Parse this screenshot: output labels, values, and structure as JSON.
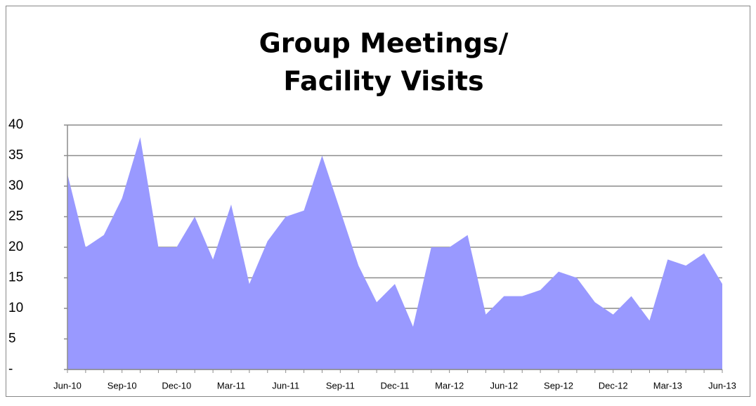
{
  "chart_data": {
    "type": "area",
    "title": [
      "Group Meetings/",
      "Facility Visits"
    ],
    "categories": [
      "Jun-10",
      null,
      null,
      "Sep-10",
      null,
      null,
      "Dec-10",
      null,
      null,
      "Mar-11",
      null,
      null,
      "Jun-11",
      null,
      null,
      "Sep-11",
      null,
      null,
      "Dec-11",
      null,
      null,
      "Mar-12",
      null,
      null,
      "Jun-12",
      null,
      null,
      "Sep-12",
      null,
      null,
      "Dec-12",
      null,
      null,
      "Mar-13",
      null,
      null,
      "Jun-13"
    ],
    "values": [
      32,
      20,
      22,
      28,
      38,
      20,
      20,
      25,
      18,
      27,
      14,
      21,
      25,
      26,
      35,
      26,
      17,
      11,
      14,
      7,
      20,
      20,
      22,
      9,
      12,
      12,
      13,
      16,
      15,
      11,
      9,
      12,
      8,
      18,
      17,
      19,
      14
    ],
    "color": "#9999ff",
    "ylim": [
      0,
      40
    ],
    "yticks": [
      {
        "value": 0,
        "label": "-"
      },
      5,
      10,
      15,
      20,
      25,
      30,
      35,
      40
    ],
    "grid": true
  }
}
